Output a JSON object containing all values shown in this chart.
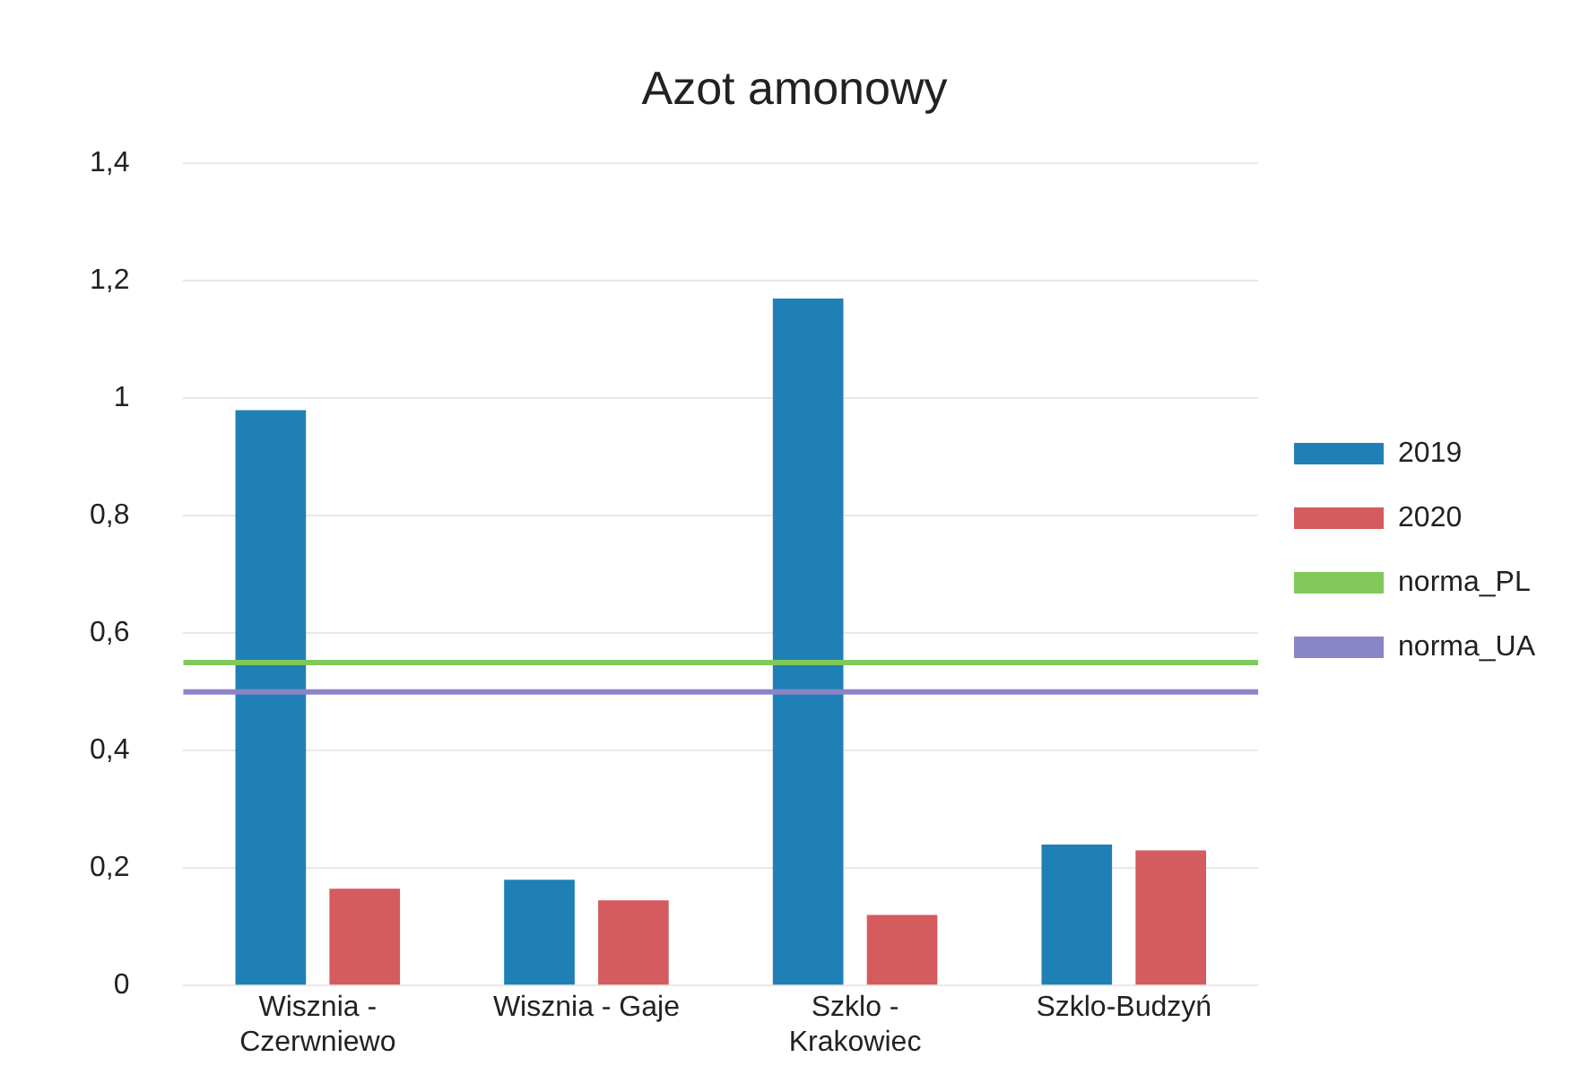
{
  "chart_data": {
    "type": "bar",
    "title": "Azot amonowy",
    "categories": [
      "Wisznia - Czerwniewo",
      "Wisznia - Gaje",
      "Szklo - Krakowiec",
      "Szklo-Budzyń"
    ],
    "series": [
      {
        "name": "2019",
        "color": "#1f80b5",
        "values": [
          0.98,
          0.18,
          1.17,
          0.24
        ]
      },
      {
        "name": "2020",
        "color": "#d45b5e",
        "values": [
          0.165,
          0.145,
          0.12,
          0.23
        ]
      }
    ],
    "ref_lines": [
      {
        "axis": "y",
        "value": 0.55,
        "label": "norma_PL",
        "color": "#80c95a"
      },
      {
        "axis": "y",
        "value": 0.5,
        "label": "norma_UA",
        "color": "#8a85c6"
      }
    ],
    "ylim": [
      0,
      1.4
    ],
    "yticks": [
      {
        "value": 0,
        "label": "0"
      },
      {
        "value": 0.2,
        "label": "0,2"
      },
      {
        "value": 0.4,
        "label": "0,4"
      },
      {
        "value": 0.6,
        "label": "0,6"
      },
      {
        "value": 0.8,
        "label": "0,8"
      },
      {
        "value": 1,
        "label": "1"
      },
      {
        "value": 1.2,
        "label": "1,2"
      },
      {
        "value": 1.4,
        "label": "1,4"
      }
    ],
    "grid": "y",
    "legend": "right"
  }
}
